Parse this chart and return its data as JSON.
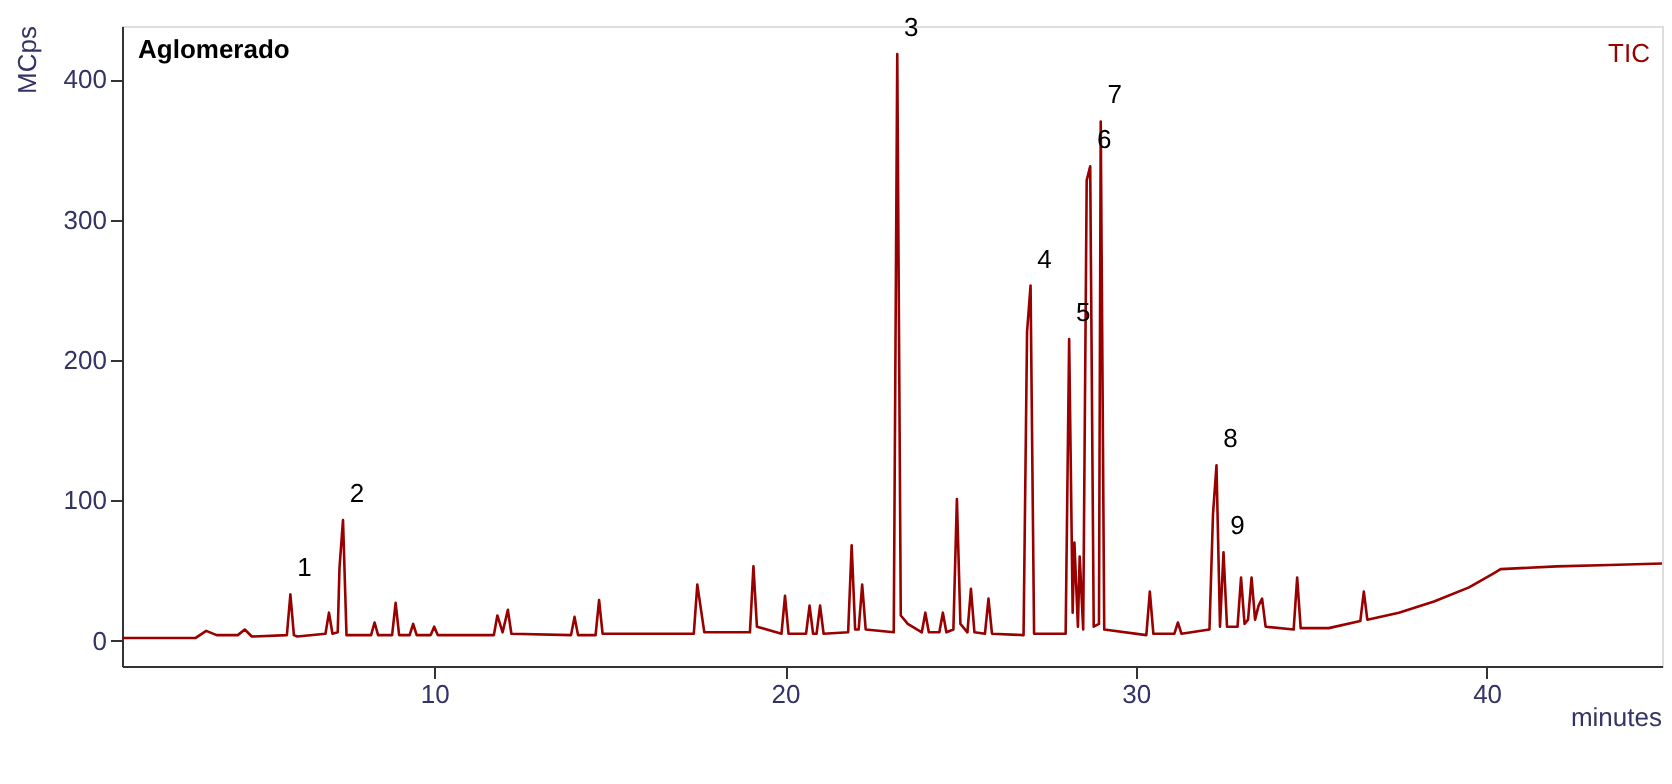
{
  "chart_data": {
    "type": "line",
    "title": "Aglomerado",
    "xlabel": "minutes",
    "ylabel": "MCps",
    "xlim": [
      1.1,
      45
    ],
    "ylim": [
      -18,
      438
    ],
    "xticks": [
      10,
      20,
      30,
      40
    ],
    "yticks": [
      0,
      100,
      200,
      300,
      400
    ],
    "grid": false,
    "marker": "none",
    "line_style": "solid",
    "annotations": [
      "TIC",
      {
        "text": "1",
        "x": 5.9,
        "y": 33
      },
      {
        "text": "2",
        "x": 7.4,
        "y": 86
      },
      {
        "text": "3",
        "x": 23.2,
        "y": 418
      },
      {
        "text": "4",
        "x": 27.0,
        "y": 253
      },
      {
        "text": "5",
        "x": 28.1,
        "y": 215
      },
      {
        "text": "6",
        "x": 28.7,
        "y": 338
      },
      {
        "text": "7",
        "x": 29.0,
        "y": 370
      },
      {
        "text": "8",
        "x": 32.3,
        "y": 125
      },
      {
        "text": "9",
        "x": 32.5,
        "y": 63
      }
    ],
    "series": [
      {
        "color": "#990000",
        "x": [
          1.1,
          3.2,
          3.5,
          3.8,
          4.4,
          4.6,
          4.8,
          5.8,
          5.9,
          6.0,
          6.1,
          6.9,
          7.0,
          7.1,
          7.25,
          7.3,
          7.4,
          7.5,
          8.2,
          8.3,
          8.4,
          8.8,
          8.9,
          9.0,
          9.3,
          9.4,
          9.5,
          9.9,
          10.0,
          10.1,
          11.7,
          11.8,
          11.95,
          12.1,
          12.2,
          13.9,
          14.0,
          14.1,
          14.6,
          14.7,
          14.8,
          17.4,
          17.5,
          17.7,
          19.0,
          19.1,
          19.2,
          19.9,
          20.0,
          20.1,
          20.6,
          20.7,
          20.8,
          20.9,
          21.0,
          21.1,
          21.8,
          21.9,
          22.0,
          22.1,
          22.2,
          22.3,
          23.1,
          23.2,
          23.3,
          23.5,
          23.9,
          24.0,
          24.1,
          24.4,
          24.5,
          24.6,
          24.8,
          24.9,
          25.0,
          25.2,
          25.3,
          25.4,
          25.7,
          25.8,
          25.9,
          26.8,
          26.9,
          27.0,
          27.1,
          28.0,
          28.1,
          28.2,
          28.25,
          28.35,
          28.4,
          28.5,
          28.6,
          28.7,
          28.8,
          28.95,
          29.0,
          29.05,
          29.1,
          30.3,
          30.4,
          30.5,
          31.1,
          31.2,
          31.3,
          32.1,
          32.2,
          32.3,
          32.4,
          32.5,
          32.6,
          32.9,
          33.0,
          33.1,
          33.2,
          33.3,
          33.4,
          33.5,
          33.6,
          33.7,
          34.5,
          34.6,
          34.7,
          35.5,
          36.4,
          36.5,
          36.6,
          37.5,
          38.5,
          39.5,
          40.2,
          40.4,
          42.0,
          43.5,
          45.0
        ],
        "values": [
          2,
          2,
          7,
          4,
          4,
          8,
          3,
          4,
          33,
          4,
          3,
          5,
          20,
          5,
          6,
          52,
          86,
          4,
          4,
          13,
          4,
          4,
          27,
          4,
          4,
          12,
          4,
          4,
          10,
          4,
          4,
          18,
          6,
          22,
          5,
          4,
          17,
          4,
          4,
          29,
          5,
          5,
          40,
          6,
          6,
          53,
          10,
          5,
          32,
          5,
          5,
          25,
          5,
          5,
          25,
          5,
          6,
          68,
          8,
          8,
          40,
          8,
          6,
          418,
          18,
          12,
          6,
          20,
          6,
          6,
          20,
          6,
          8,
          101,
          12,
          6,
          37,
          6,
          5,
          30,
          5,
          4,
          220,
          253,
          5,
          5,
          215,
          20,
          70,
          10,
          60,
          8,
          328,
          338,
          10,
          12,
          370,
          190,
          8,
          4,
          35,
          5,
          5,
          13,
          5,
          8,
          90,
          125,
          10,
          63,
          10,
          10,
          45,
          12,
          15,
          45,
          15,
          25,
          30,
          10,
          8,
          45,
          9,
          9,
          14,
          35,
          15,
          20,
          28,
          38,
          48,
          51,
          53,
          54,
          55
        ]
      }
    ]
  }
}
